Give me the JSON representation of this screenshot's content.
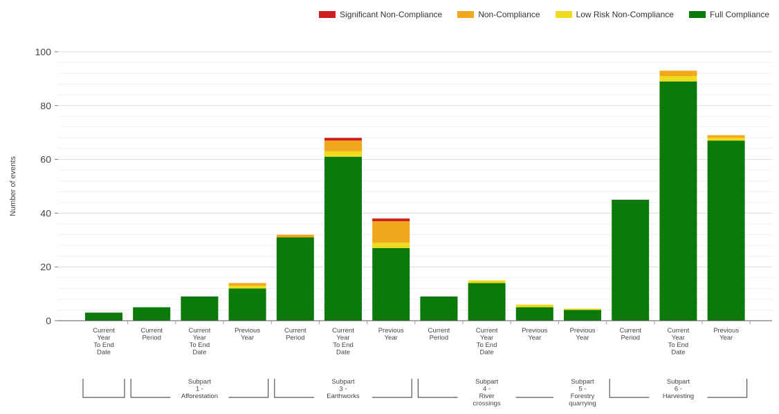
{
  "chart_data": {
    "type": "bar",
    "stacked": true,
    "ylabel": "Number of events",
    "ylim": [
      0,
      100
    ],
    "yticks": [
      0,
      20,
      40,
      60,
      80,
      100
    ],
    "grid": true,
    "legend_position": "top-right",
    "categories": [
      [
        "Current",
        "Year",
        "To End",
        "Date"
      ],
      [
        "Current",
        "Period"
      ],
      [
        "Current",
        "Year",
        "To End",
        "Date"
      ],
      [
        "Previous",
        "Year"
      ],
      [
        "Current",
        "Period"
      ],
      [
        "Current",
        "Year",
        "To End",
        "Date"
      ],
      [
        "Previous",
        "Year"
      ],
      [
        "Current",
        "Period"
      ],
      [
        "Current",
        "Year",
        "To End",
        "Date"
      ],
      [
        "Previous",
        "Year"
      ],
      [
        "Previous",
        "Year"
      ],
      [
        "Current",
        "Period"
      ],
      [
        "Current",
        "Year",
        "To End",
        "Date"
      ],
      [
        "Previous",
        "Year"
      ]
    ],
    "groups": [
      {
        "label": [],
        "start": 0,
        "end": 0
      },
      {
        "label": [
          "Subpart",
          "1 -",
          "Afforestation"
        ],
        "start": 1,
        "end": 3
      },
      {
        "label": [
          "Subpart",
          "3 -",
          "Earthworks"
        ],
        "start": 4,
        "end": 6
      },
      {
        "label": [
          "Subpart",
          "4 -",
          "River",
          "crossings"
        ],
        "start": 7,
        "end": 9
      },
      {
        "label": [
          "Subpart",
          "5 -",
          "Forestry",
          "quarrying"
        ],
        "start": 10,
        "end": 10
      },
      {
        "label": [
          "Subpart",
          "6 -",
          "Harvesting"
        ],
        "start": 11,
        "end": 13
      }
    ],
    "series": [
      {
        "name": "Full Compliance",
        "color": "#0b7a0b",
        "values": [
          3,
          5,
          9,
          12,
          31,
          61,
          27,
          9,
          14,
          5,
          4,
          45,
          89,
          67
        ]
      },
      {
        "name": "Low Risk Non-Compliance",
        "color": "#f0dc1e",
        "values": [
          0,
          0,
          0,
          1,
          0,
          2,
          2,
          0,
          1,
          1,
          0.5,
          0,
          2,
          1
        ]
      },
      {
        "name": "Non-Compliance",
        "color": "#f2a81d",
        "values": [
          0,
          0,
          0,
          1,
          1,
          4,
          8,
          0,
          0,
          0,
          0,
          0,
          2,
          1
        ]
      },
      {
        "name": "Significant Non-Compliance",
        "color": "#d01c1c",
        "values": [
          0,
          0,
          0,
          0,
          0,
          1,
          1,
          0,
          0,
          0,
          0,
          0,
          0,
          0
        ]
      }
    ],
    "legend_order": [
      "Significant Non-Compliance",
      "Non-Compliance",
      "Low Risk Non-Compliance",
      "Full Compliance"
    ]
  }
}
